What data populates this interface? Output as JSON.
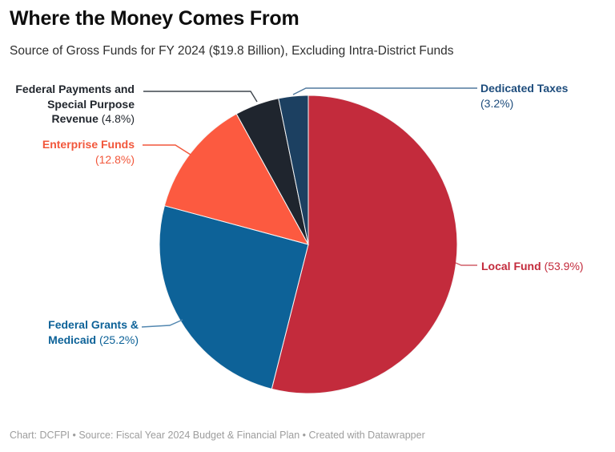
{
  "header": {
    "title": "Where the Money Comes From",
    "subtitle": "Source of Gross Funds for FY 2024 ($19.8 Billion), Excluding Intra-District Funds"
  },
  "footer": {
    "text": "Chart: DCFPI • Source: Fiscal Year 2024 Budget & Financial Plan  • Created with Datawrapper"
  },
  "chart_data": {
    "type": "pie",
    "title": "Where the Money Comes From",
    "subtitle": "Source of Gross Funds for FY 2024 ($19.8 Billion), Excluding Intra-District Funds",
    "unit": "percent",
    "total_label": "$19.8 Billion",
    "start_angle": "12-o-clock",
    "direction": "clockwise",
    "legend_position": "outside-callout-labels",
    "slices": [
      {
        "label": "Local Fund",
        "value": 53.9,
        "pct_text": "(53.9%)",
        "label_lines": [
          "Local Fund"
        ],
        "color": "#C32B3C",
        "label_color": "#C32B3C",
        "line_color": "#D05E68"
      },
      {
        "label": "Federal Grants & Medicaid",
        "value": 25.2,
        "pct_text": "(25.2%)",
        "label_lines": [
          "Federal Grants &",
          "Medicaid"
        ],
        "color": "#0D6298",
        "label_color": "#0D6298",
        "line_color": "#5287B0"
      },
      {
        "label": "Enterprise Funds",
        "value": 12.8,
        "pct_text": "(12.8%)",
        "label_lines": [
          "Enterprise Funds"
        ],
        "color": "#FC5A40",
        "label_color": "#F2573B",
        "line_color": "#F2573B"
      },
      {
        "label": "Federal Payments and Special Purpose Revenue",
        "value": 4.8,
        "pct_text": "(4.8%)",
        "label_lines": [
          "Federal Payments and",
          "Special Purpose",
          "Revenue"
        ],
        "color": "#1F252E",
        "label_color": "#22272E",
        "line_color": "#3F454D"
      },
      {
        "label": "Dedicated Taxes",
        "value": 3.2,
        "pct_text": "(3.2%)",
        "label_lines": [
          "Dedicated Taxes"
        ],
        "color": "#1C4061",
        "label_color": "#1D4C7C",
        "line_color": "#50789D"
      }
    ]
  }
}
